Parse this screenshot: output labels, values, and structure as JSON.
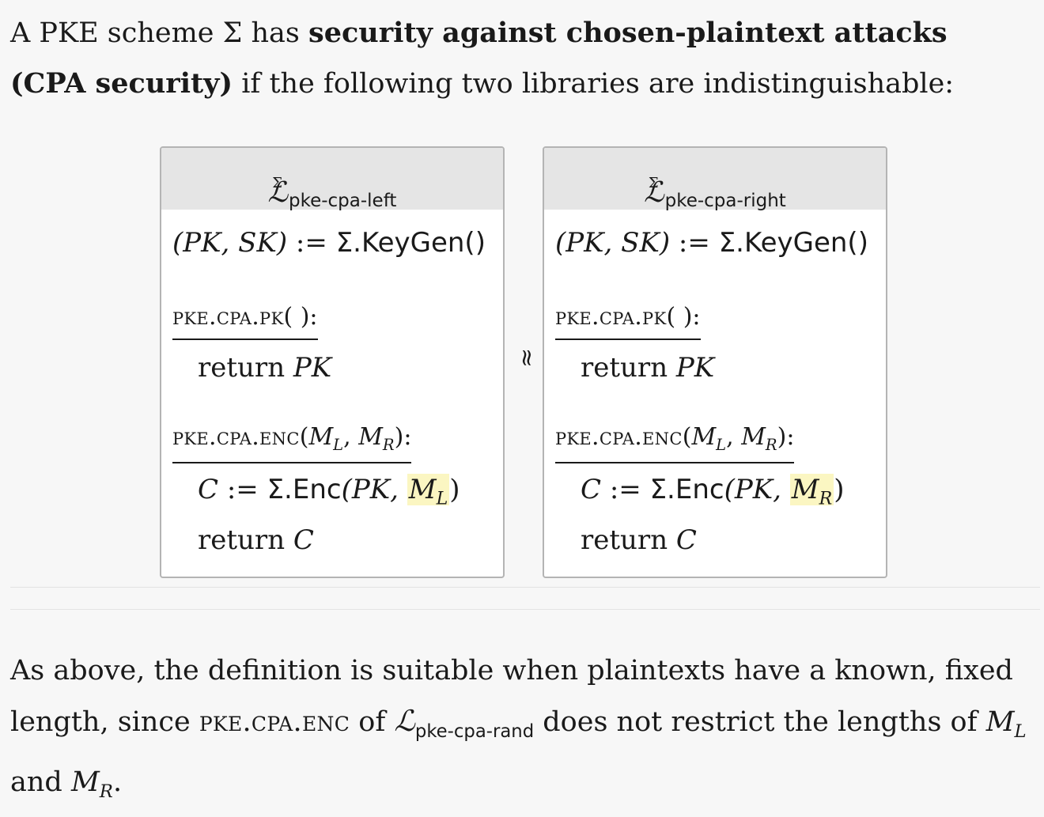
{
  "intro": {
    "t1": "A PKE scheme Σ has ",
    "bold": "security against chosen-plaintext attacks (CPA security)",
    "t2": " if the following two libraries are indistinguishable:"
  },
  "libraries": {
    "left": {
      "symbol": "ℒ",
      "sup": "Σ",
      "name": "pke-cpa-left",
      "init_lhs": "(PK, SK)",
      "init_op": " := ",
      "init_rhs": "Σ.KeyGen()",
      "pk_proc": "pke.cpa.pk",
      "pk_args": "( ):",
      "pk_return_kw": "return ",
      "pk_return_val": "PK",
      "enc_proc": "pke.cpa.enc",
      "enc_args_open": "(",
      "enc_m": "M",
      "enc_l": "L",
      "enc_sep": ", ",
      "enc_r": "R",
      "enc_args_close": "):",
      "c_var": "C",
      "c_op": " := ",
      "c_fn": "Σ.Enc",
      "c_args_open": "(PK, ",
      "c_arg_m": "M",
      "c_arg_sub": "L",
      "c_args_close": ")",
      "ret_kw": "return ",
      "ret_val": "C"
    },
    "right": {
      "symbol": "ℒ",
      "sup": "Σ",
      "name": "pke-cpa-right",
      "init_lhs": "(PK, SK)",
      "init_op": " := ",
      "init_rhs": "Σ.KeyGen()",
      "pk_proc": "pke.cpa.pk",
      "pk_args": "( ):",
      "pk_return_kw": "return ",
      "pk_return_val": "PK",
      "enc_proc": "pke.cpa.enc",
      "enc_args_open": "(",
      "enc_m": "M",
      "enc_l": "L",
      "enc_sep": ", ",
      "enc_r": "R",
      "enc_args_close": "):",
      "c_var": "C",
      "c_op": " := ",
      "c_fn": "Σ.Enc",
      "c_args_open": "(PK, ",
      "c_arg_m": "M",
      "c_arg_sub": "R",
      "c_args_close": ")",
      "ret_kw": "return ",
      "ret_val": "C"
    },
    "relation": "≈"
  },
  "outro": {
    "t1": "As above, the definition is suitable when plaintexts have a known, fixed length, since ",
    "proc": "pke.cpa.enc",
    "t2": " of ",
    "lib_symbol": "ℒ",
    "lib_name": "pke-cpa-rand",
    "t3": " does not restrict the lengths of ",
    "m1": "M",
    "m1_sub": "L",
    "t4": " and ",
    "m2": "M",
    "m2_sub": "R",
    "t5": "."
  }
}
